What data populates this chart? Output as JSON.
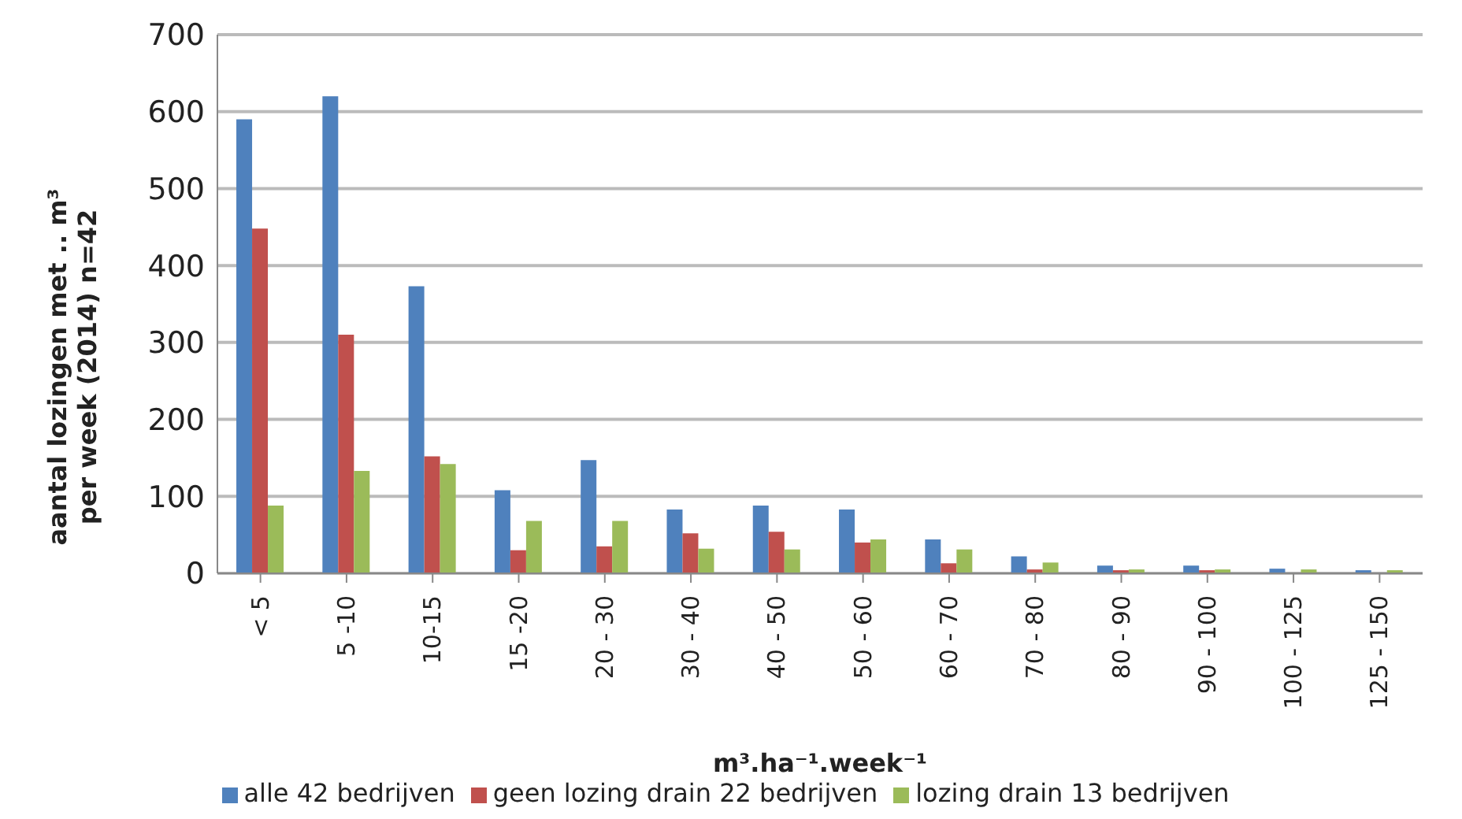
{
  "chart_data": {
    "type": "bar",
    "xlabel": "m³.ha⁻¹.week⁻¹",
    "ylabel": "aantal lozingen met .. m³ per week (2014) n=42",
    "categories": [
      "< 5",
      "5 -10",
      "10-15",
      "15 -20",
      "20 - 30",
      "30 - 40",
      "40 - 50",
      "50 - 60",
      "60 - 70",
      "70 - 80",
      "80 - 90",
      "90 - 100",
      "100 - 125",
      "125 - 150"
    ],
    "series": [
      {
        "name": "alle 42 bedrijven",
        "color": "#4f81bd",
        "values": [
          590,
          620,
          373,
          108,
          147,
          83,
          88,
          83,
          44,
          22,
          10,
          10,
          6,
          4
        ]
      },
      {
        "name": "geen lozing drain 22 bedrijven",
        "color": "#c0504d",
        "values": [
          448,
          310,
          152,
          30,
          35,
          52,
          54,
          40,
          13,
          5,
          4,
          4,
          0,
          0
        ]
      },
      {
        "name": "lozing drain 13 bedrijven",
        "color": "#9bbb59",
        "values": [
          88,
          133,
          142,
          68,
          68,
          32,
          31,
          44,
          31,
          14,
          5,
          5,
          5,
          4
        ]
      }
    ],
    "ylim": [
      0,
      700
    ],
    "yticks": [
      0,
      100,
      200,
      300,
      400,
      500,
      600,
      700
    ],
    "grid": "y",
    "legend": "bottom"
  }
}
